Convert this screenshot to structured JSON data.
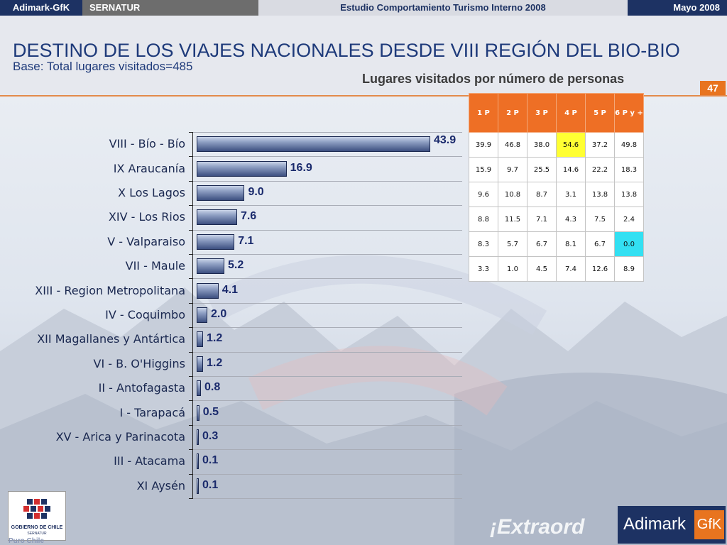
{
  "topbar": {
    "brand": "Adimark-GfK",
    "client": "SERNATUR",
    "study": "Estudio Comportamiento Turismo Interno 2008",
    "date": "Mayo 2008"
  },
  "header": {
    "title": "DESTINO DE LOS VIAJES NACIONALES DESDE VIII REGIÓN DEL BIO-BIO",
    "subtitle": "Base: Total lugares visitados=485",
    "table_title": "Lugares visitados por número de personas",
    "page_number": "47"
  },
  "colors": {
    "accent": "#e8741f",
    "navy": "#1d3263",
    "highlight_yellow": "#ffff33",
    "highlight_cyan": "#33e0f2"
  },
  "chart_data": {
    "type": "bar",
    "orientation": "horizontal",
    "categories": [
      "VIII - Bío - Bío",
      "IX Araucanía",
      "X Los Lagos",
      "XIV - Los Rios",
      "V - Valparaiso",
      "VII - Maule",
      "XIII - Region Metropolitana",
      "IV - Coquimbo",
      "XII Magallanes y Antártica",
      "VI - B. O'Higgins",
      "II - Antofagasta",
      "I - Tarapacá",
      "XV - Arica y Parinacota",
      "III - Atacama",
      "XI Aysén"
    ],
    "values": [
      43.9,
      16.9,
      9.0,
      7.6,
      7.1,
      5.2,
      4.1,
      2.0,
      1.2,
      1.2,
      0.8,
      0.5,
      0.3,
      0.1,
      0.1
    ],
    "value_labels": [
      "43.9",
      "16.9",
      "9.0",
      "7.6",
      "7.1",
      "5.2",
      "4.1",
      "2.0",
      "1.2",
      "1.2",
      "0.8",
      "0.5",
      "0.3",
      "0.1",
      "0.1"
    ],
    "xlim": [
      0,
      43.9
    ],
    "grid": true,
    "legend": "none"
  },
  "table": {
    "headers": [
      "1 P",
      "2 P",
      "3 P",
      "4 P",
      "5 P",
      "6 P y +"
    ],
    "rows": [
      [
        "39.9",
        "46.8",
        "38.0",
        "54.6",
        "37.2",
        "49.8"
      ],
      [
        "15.9",
        "9.7",
        "25.5",
        "14.6",
        "22.2",
        "18.3"
      ],
      [
        "9.6",
        "10.8",
        "8.7",
        "3.1",
        "13.8",
        "13.8"
      ],
      [
        "8.8",
        "11.5",
        "7.1",
        "4.3",
        "7.5",
        "2.4"
      ],
      [
        "8.3",
        "5.7",
        "6.7",
        "8.1",
        "6.7",
        "0.0"
      ],
      [
        "3.3",
        "1.0",
        "4.5",
        "7.4",
        "12.6",
        "8.9"
      ]
    ],
    "highlights": [
      {
        "row": 0,
        "col": 3,
        "color": "yellow"
      },
      {
        "row": 4,
        "col": 5,
        "color": "cyan"
      }
    ]
  },
  "logos": {
    "gobierno_line1": "GOBIERNO DE CHILE",
    "gobierno_line2": "SERNATUR",
    "adimark": "Adimark",
    "gfk": "GfK",
    "puro_chile": "Puro Chile",
    "extraordinario": "¡Extraord"
  }
}
